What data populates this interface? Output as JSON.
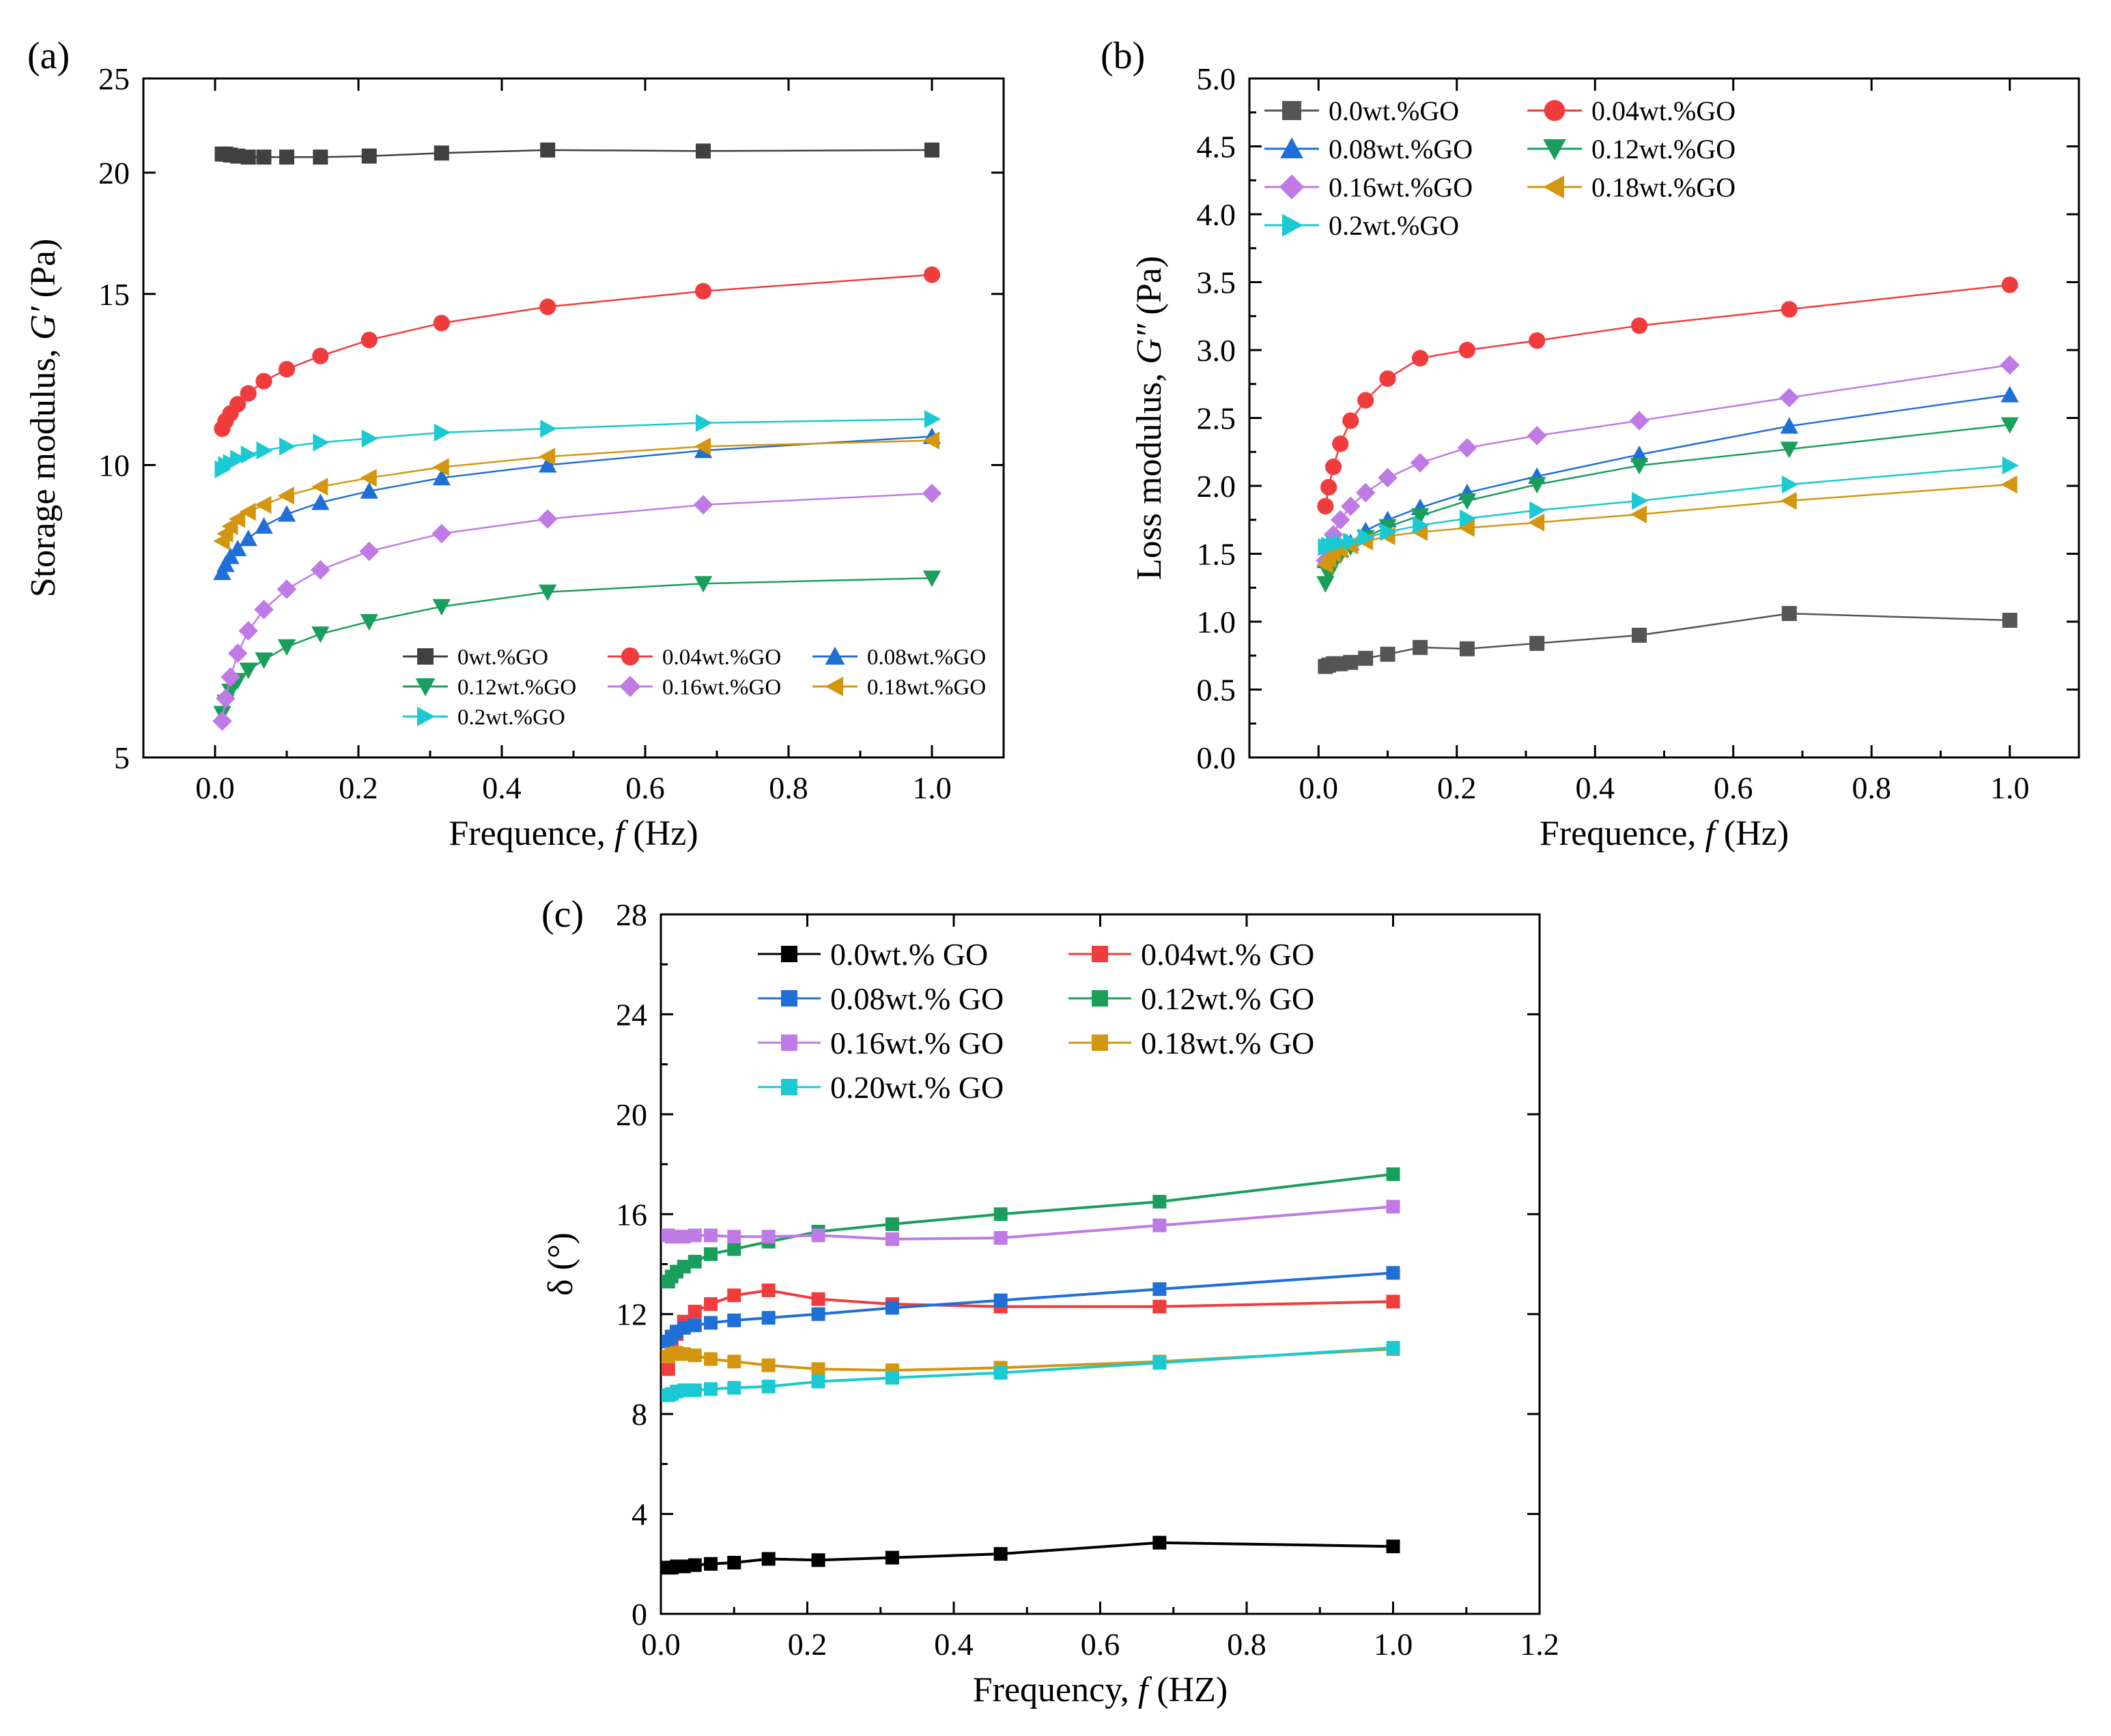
{
  "figure": {
    "panels": [
      "(a)",
      "(b)",
      "(c)"
    ]
  },
  "chart_data": [
    {
      "id": "a",
      "panel_label": "(a)",
      "type": "line",
      "ylog": true,
      "xlabel": {
        "prefix": "Frequence, ",
        "italic": "f",
        "suffix": " (Hz)"
      },
      "ylabel": {
        "prefix": "Storage modulus, ",
        "italic": "G′",
        "suffix": " (Pa)"
      },
      "xlim": [
        -0.1,
        1.1
      ],
      "ylim": [
        5,
        25
      ],
      "xticks": [
        0.0,
        0.2,
        0.4,
        0.6,
        0.8,
        1.0
      ],
      "xtick_labels": [
        "0.0",
        "0.2",
        "0.4",
        "0.6",
        "0.8",
        "1.0"
      ],
      "yticks": [
        5,
        10,
        15,
        20,
        25
      ],
      "ytick_labels": [
        "5",
        "10",
        "15",
        "20",
        "25"
      ],
      "legend": {
        "placement": "bottom-right",
        "columns": 3
      },
      "x": [
        0.01,
        0.0147,
        0.0215,
        0.0316,
        0.0464,
        0.0681,
        0.1,
        0.147,
        0.215,
        0.316,
        0.464,
        0.681,
        1.0
      ],
      "series": [
        {
          "name": "0wt.%GO",
          "color": "#404040",
          "marker": "square",
          "values": [
            20.9,
            20.9,
            20.85,
            20.8,
            20.75,
            20.75,
            20.75,
            20.75,
            20.8,
            20.95,
            21.1,
            21.05,
            21.1
          ]
        },
        {
          "name": "0.04wt.%GO",
          "color": "#f03c3c",
          "marker": "circle",
          "values": [
            10.9,
            11.1,
            11.3,
            11.55,
            11.85,
            12.2,
            12.55,
            12.95,
            13.45,
            14.0,
            14.55,
            15.1,
            15.7
          ]
        },
        {
          "name": "0.08wt.%GO",
          "color": "#1f6fd6",
          "marker": "triangle-up",
          "values": [
            7.75,
            7.9,
            8.05,
            8.2,
            8.4,
            8.65,
            8.9,
            9.15,
            9.4,
            9.7,
            10.0,
            10.35,
            10.7
          ]
        },
        {
          "name": "0.12wt.%GO",
          "color": "#1a9e5c",
          "marker": "triangle-down",
          "values": [
            5.55,
            5.7,
            5.85,
            6.0,
            6.15,
            6.3,
            6.5,
            6.7,
            6.9,
            7.15,
            7.4,
            7.55,
            7.65
          ]
        },
        {
          "name": "0.16wt.%GO",
          "color": "#c07ae6",
          "marker": "diamond",
          "values": [
            5.45,
            5.75,
            6.05,
            6.4,
            6.75,
            7.1,
            7.45,
            7.8,
            8.15,
            8.5,
            8.8,
            9.1,
            9.35
          ]
        },
        {
          "name": "0.18wt.%GO",
          "color": "#d4960f",
          "marker": "triangle-left",
          "values": [
            8.35,
            8.5,
            8.65,
            8.8,
            8.95,
            9.1,
            9.3,
            9.5,
            9.7,
            9.95,
            10.2,
            10.45,
            10.6
          ]
        },
        {
          "name": "0.2wt.%GO",
          "color": "#1ac9d1",
          "marker": "triangle-right",
          "values": [
            9.9,
            10.0,
            10.05,
            10.15,
            10.25,
            10.35,
            10.45,
            10.55,
            10.65,
            10.8,
            10.9,
            11.05,
            11.15
          ]
        }
      ]
    },
    {
      "id": "b",
      "panel_label": "(b)",
      "type": "line",
      "xlabel": {
        "prefix": "Frequence, ",
        "italic": "f",
        "suffix": " (Hz)"
      },
      "ylabel": {
        "prefix": "Loss modulus, ",
        "italic": "G″",
        "suffix": " (Pa)"
      },
      "xlim": [
        -0.1,
        1.1
      ],
      "ylim": [
        0.0,
        5.0
      ],
      "xticks": [
        0.0,
        0.2,
        0.4,
        0.6,
        0.8,
        1.0
      ],
      "xtick_labels": [
        "0.0",
        "0.2",
        "0.4",
        "0.6",
        "0.8",
        "1.0"
      ],
      "yticks": [
        0.0,
        0.5,
        1.0,
        1.5,
        2.0,
        2.5,
        3.0,
        3.5,
        4.0,
        4.5,
        5.0
      ],
      "ytick_labels": [
        "0.0",
        "0.5",
        "1.0",
        "1.5",
        "2.0",
        "2.5",
        "3.0",
        "3.5",
        "4.0",
        "4.5",
        "5.0"
      ],
      "legend": {
        "placement": "top-left",
        "columns": 2
      },
      "x": [
        0.01,
        0.0147,
        0.0215,
        0.0316,
        0.0464,
        0.0681,
        0.1,
        0.147,
        0.215,
        0.316,
        0.464,
        0.681,
        1.0
      ],
      "series": [
        {
          "name": "0.0wt.%GO",
          "color": "#555555",
          "marker": "square",
          "values": [
            0.67,
            0.68,
            0.69,
            0.69,
            0.7,
            0.73,
            0.76,
            0.81,
            0.8,
            0.84,
            0.9,
            1.06,
            1.01
          ]
        },
        {
          "name": "0.04wt.%GO",
          "color": "#f03c3c",
          "marker": "circle",
          "values": [
            1.85,
            1.99,
            2.14,
            2.31,
            2.48,
            2.63,
            2.79,
            2.94,
            3.0,
            3.07,
            3.18,
            3.3,
            3.48
          ]
        },
        {
          "name": "0.08wt.%GO",
          "color": "#1f6fd6",
          "marker": "triangle-up",
          "values": [
            1.45,
            1.48,
            1.5,
            1.53,
            1.58,
            1.67,
            1.75,
            1.84,
            1.95,
            2.07,
            2.23,
            2.44,
            2.67
          ]
        },
        {
          "name": "0.12wt.%GO",
          "color": "#1a9e5c",
          "marker": "triangle-down",
          "values": [
            1.28,
            1.35,
            1.42,
            1.49,
            1.55,
            1.62,
            1.7,
            1.78,
            1.89,
            2.01,
            2.15,
            2.27,
            2.45
          ]
        },
        {
          "name": "0.16wt.%GO",
          "color": "#c07ae6",
          "marker": "diamond",
          "values": [
            1.45,
            1.55,
            1.64,
            1.75,
            1.85,
            1.95,
            2.06,
            2.17,
            2.28,
            2.37,
            2.48,
            2.65,
            2.89
          ]
        },
        {
          "name": "0.18wt.%GO",
          "color": "#d4960f",
          "marker": "triangle-left",
          "values": [
            1.42,
            1.46,
            1.5,
            1.53,
            1.56,
            1.59,
            1.63,
            1.66,
            1.69,
            1.73,
            1.79,
            1.89,
            2.01
          ]
        },
        {
          "name": "0.2wt.%GO",
          "color": "#1ac9d1",
          "marker": "triangle-right",
          "values": [
            1.55,
            1.56,
            1.57,
            1.58,
            1.59,
            1.62,
            1.66,
            1.71,
            1.76,
            1.82,
            1.89,
            2.01,
            2.15
          ]
        }
      ]
    },
    {
      "id": "c",
      "panel_label": "(c)",
      "type": "line",
      "xlabel": {
        "prefix": "Frequency, ",
        "italic": "f",
        "suffix": " (HZ)"
      },
      "ylabel": {
        "prefix": "δ (°)",
        "italic": "",
        "suffix": ""
      },
      "xlim": [
        0.0,
        1.2
      ],
      "ylim": [
        0,
        28
      ],
      "xticks": [
        0.0,
        0.2,
        0.4,
        0.6,
        0.8,
        1.0,
        1.2
      ],
      "xtick_labels": [
        "0.0",
        "0.2",
        "0.4",
        "0.6",
        "0.8",
        "1.0",
        "1.2"
      ],
      "yticks": [
        0,
        4,
        8,
        12,
        16,
        20,
        24,
        28
      ],
      "ytick_labels": [
        "0",
        "4",
        "8",
        "12",
        "16",
        "20",
        "24",
        "28"
      ],
      "legend": {
        "placement": "top-left",
        "columns": 2
      },
      "x": [
        0.01,
        0.0147,
        0.0215,
        0.0316,
        0.0464,
        0.0681,
        0.1,
        0.147,
        0.215,
        0.316,
        0.464,
        0.681,
        1.0
      ],
      "series": [
        {
          "name": "0.0wt.% GO",
          "color": "#000000",
          "marker": "square",
          "values": [
            1.85,
            1.85,
            1.9,
            1.9,
            1.95,
            2.0,
            2.05,
            2.2,
            2.15,
            2.25,
            2.4,
            2.85,
            2.7
          ]
        },
        {
          "name": "0.04wt.% GO",
          "color": "#f03c3c",
          "marker": "square",
          "values": [
            9.8,
            10.6,
            11.2,
            11.7,
            12.1,
            12.4,
            12.75,
            12.95,
            12.6,
            12.4,
            12.3,
            12.3,
            12.5
          ]
        },
        {
          "name": "0.08wt.% GO",
          "color": "#1f6fd6",
          "marker": "square",
          "values": [
            10.9,
            11.1,
            11.3,
            11.45,
            11.55,
            11.65,
            11.75,
            11.85,
            12.0,
            12.25,
            12.55,
            13.0,
            13.65
          ]
        },
        {
          "name": "0.12wt.% GO",
          "color": "#1a9e5c",
          "marker": "square",
          "values": [
            13.3,
            13.5,
            13.7,
            13.9,
            14.1,
            14.4,
            14.6,
            14.9,
            15.3,
            15.6,
            16.0,
            16.5,
            17.6
          ]
        },
        {
          "name": "0.16wt.% GO",
          "color": "#c07ae6",
          "marker": "square",
          "values": [
            15.15,
            15.1,
            15.1,
            15.1,
            15.15,
            15.15,
            15.1,
            15.1,
            15.15,
            15.0,
            15.05,
            15.55,
            16.3
          ]
        },
        {
          "name": "0.18wt.% GO",
          "color": "#d4960f",
          "marker": "square",
          "values": [
            10.3,
            10.4,
            10.45,
            10.4,
            10.35,
            10.2,
            10.1,
            9.95,
            9.8,
            9.75,
            9.85,
            10.1,
            10.6
          ]
        },
        {
          "name": "0.20wt.% GO",
          "color": "#1ac9d1",
          "marker": "square",
          "values": [
            8.75,
            8.8,
            8.9,
            8.95,
            8.95,
            9.0,
            9.05,
            9.1,
            9.3,
            9.45,
            9.65,
            10.05,
            10.65
          ]
        }
      ]
    }
  ]
}
